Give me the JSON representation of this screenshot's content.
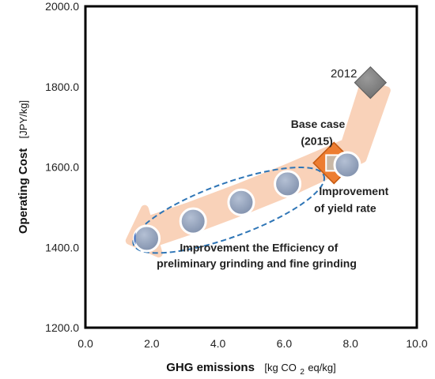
{
  "chart_data": {
    "type": "scatter",
    "xlim": [
      0,
      10
    ],
    "ylim": [
      1200,
      2000
    ],
    "x_ticks": [
      "0.0",
      "2.0",
      "4.0",
      "6.0",
      "8.0",
      "10.0"
    ],
    "y_ticks": [
      "1200.0",
      "1400.0",
      "1600.0",
      "1800.0",
      "2000.0"
    ],
    "xlabel": "GHG emissions",
    "xunit_pre": "[kg CO",
    "xunit_sub": "2",
    "xunit_post": "eq/kg]",
    "ylabel": "Operating Cost",
    "yunit": "[JPY/kg]",
    "grid": false,
    "series": [
      {
        "marker": "diamond",
        "color": "#7f7f7f",
        "points": [
          {
            "x": 8.6,
            "y": 1810,
            "label": "2012"
          }
        ]
      },
      {
        "marker": "diamond",
        "color": "#ed7d31",
        "points": [
          {
            "x": 7.5,
            "y": 1610,
            "label": "Base case (2015)"
          }
        ]
      },
      {
        "marker": "circle",
        "color": "#8496b0",
        "points": [
          {
            "x": 7.9,
            "y": 1605
          },
          {
            "x": 6.1,
            "y": 1558
          },
          {
            "x": 4.7,
            "y": 1512
          },
          {
            "x": 3.25,
            "y": 1465
          },
          {
            "x": 1.85,
            "y": 1422
          }
        ]
      }
    ],
    "annotations": {
      "year_2012": "2012",
      "base_case_line1": "Base case",
      "base_case_line2": "(2015)",
      "yield_line1": "Improvement",
      "yield_line2": "of yield rate",
      "grinding_line1": "Improvement the Efficiency of",
      "grinding_line2": "preliminary grinding and fine grinding"
    },
    "colors": {
      "arrow": "#f8cbad",
      "dashed_ellipse": "#2e75b6",
      "frame": "#000000"
    }
  }
}
